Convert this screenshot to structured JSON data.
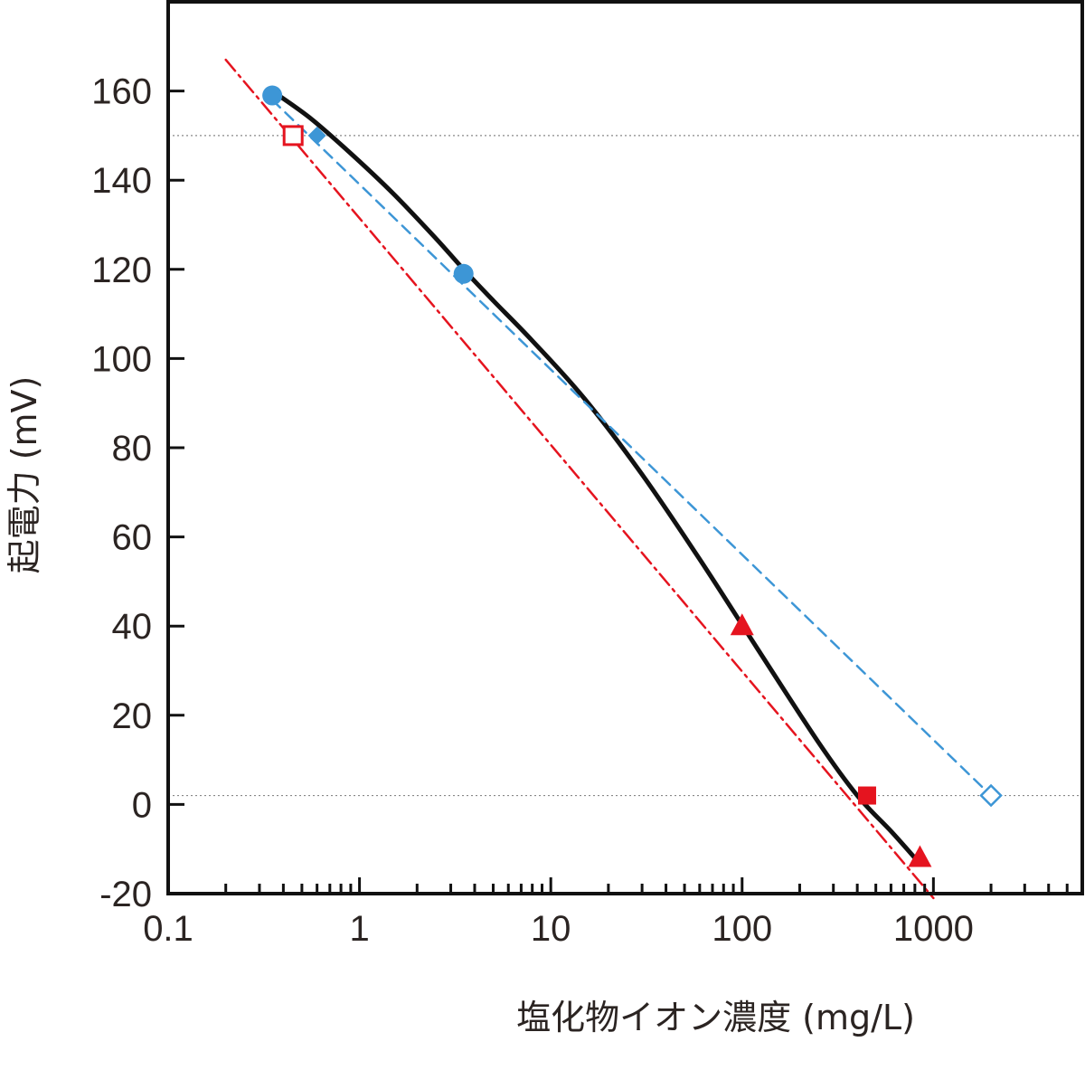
{
  "chart_data": {
    "type": "line",
    "xlabel": "塩化物イオン濃度 (mg/L)",
    "ylabel": "起電力 (mV)",
    "xscale": "log",
    "xlim": [
      0.1,
      6000
    ],
    "ylim": [
      -20,
      180
    ],
    "xticks": [
      {
        "value": 0.1,
        "label": "0.1"
      },
      {
        "value": 1,
        "label": "1"
      },
      {
        "value": 10,
        "label": "10"
      },
      {
        "value": 100,
        "label": "100"
      },
      {
        "value": 1000,
        "label": "1000"
      }
    ],
    "yticks": [
      {
        "value": -20,
        "label": "-20"
      },
      {
        "value": 0,
        "label": "0"
      },
      {
        "value": 20,
        "label": "20"
      },
      {
        "value": 40,
        "label": "40"
      },
      {
        "value": 60,
        "label": "60"
      },
      {
        "value": 80,
        "label": "80"
      },
      {
        "value": 100,
        "label": "100"
      },
      {
        "value": 120,
        "label": "120"
      },
      {
        "value": 140,
        "label": "140"
      },
      {
        "value": 160,
        "label": "160"
      }
    ],
    "reference_lines": [
      {
        "axis": "y",
        "value": 150,
        "style": "dotted",
        "color": "#888888"
      },
      {
        "axis": "y",
        "value": 2,
        "style": "dotted",
        "color": "#888888"
      }
    ],
    "series": [
      {
        "style": "solid",
        "color": "#111111",
        "x": [
          0.35,
          0.55,
          0.9,
          1.5,
          2.5,
          3.5,
          5,
          8,
          15,
          30,
          60,
          120,
          250,
          400,
          600,
          800
        ],
        "y": [
          160,
          154,
          146,
          137,
          127,
          120,
          113,
          104,
          91,
          74,
          55,
          35,
          14,
          2,
          -6,
          -12
        ],
        "points": [
          {
            "x": 0.35,
            "y": 159,
            "marker": "circle",
            "color": "#3d96d6",
            "filled": true
          },
          {
            "x": 3.5,
            "y": 119,
            "marker": "circle",
            "color": "#3d96d6",
            "filled": true
          }
        ]
      },
      {
        "style": "dash-dot",
        "color": "#e5141f",
        "x": [
          0.2,
          1000
        ],
        "y": [
          167,
          -21
        ],
        "points": [
          {
            "x": 0.45,
            "y": 150,
            "marker": "square",
            "color": "#e5141f",
            "filled": false
          },
          {
            "x": 100,
            "y": 40,
            "marker": "triangle",
            "color": "#e5141f",
            "filled": true
          },
          {
            "x": 450,
            "y": 2,
            "marker": "square",
            "color": "#e5141f",
            "filled": true
          },
          {
            "x": 850,
            "y": -12,
            "marker": "triangle",
            "color": "#e5141f",
            "filled": true
          }
        ]
      },
      {
        "style": "dashed",
        "color": "#3d96d6",
        "x": [
          0.35,
          2000
        ],
        "y": [
          158,
          2
        ],
        "points": [
          {
            "x": 0.6,
            "y": 150,
            "marker": "diamond",
            "color": "#3d96d6",
            "filled": true
          },
          {
            "x": 2000,
            "y": 2,
            "marker": "diamond",
            "color": "#3d96d6",
            "filled": false
          }
        ]
      }
    ]
  }
}
